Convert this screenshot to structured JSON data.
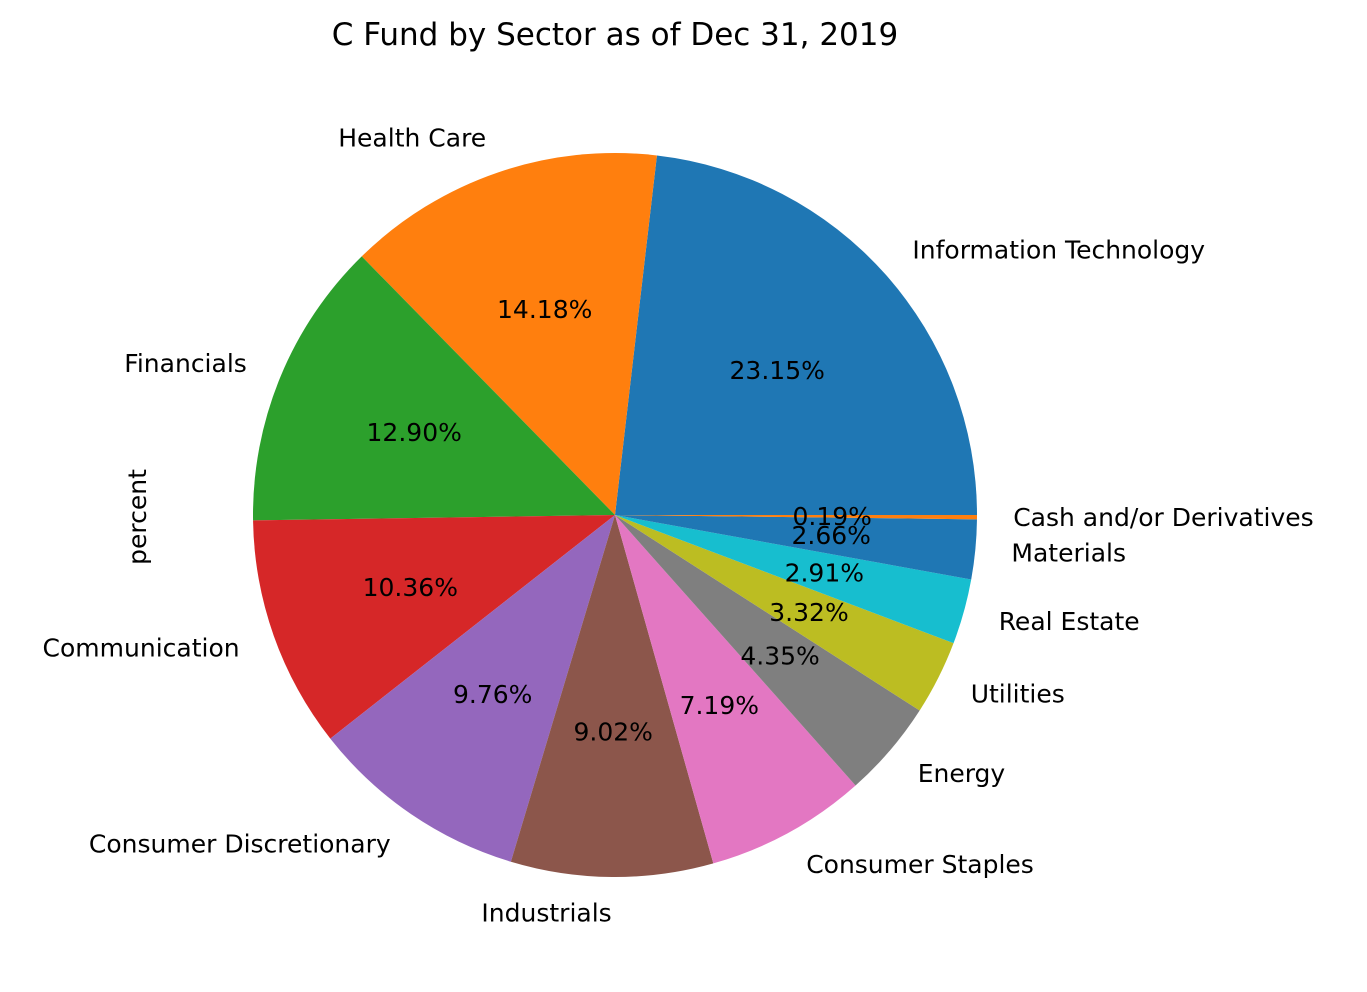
{
  "chart_data": {
    "type": "pie",
    "title": "C Fund by Sector as of Dec 31, 2019",
    "ylabel": "percent",
    "value_format": "{v}%",
    "start_angle_deg": 0,
    "direction": "counterclockwise",
    "slices": [
      {
        "label": "Information Technology",
        "value": 23.15,
        "display": "23.15%",
        "color": "#1f77b4"
      },
      {
        "label": "Health Care",
        "value": 14.18,
        "display": "14.18%",
        "color": "#ff7f0e"
      },
      {
        "label": "Financials",
        "value": 12.9,
        "display": "12.90%",
        "color": "#2ca02c"
      },
      {
        "label": "Communication",
        "value": 10.36,
        "display": "10.36%",
        "color": "#d62728"
      },
      {
        "label": "Consumer Discretionary",
        "value": 9.76,
        "display": "9.76%",
        "color": "#9467bd"
      },
      {
        "label": "Industrials",
        "value": 9.02,
        "display": "9.02%",
        "color": "#8c564b"
      },
      {
        "label": "Consumer Staples",
        "value": 7.19,
        "display": "7.19%",
        "color": "#e377c2"
      },
      {
        "label": "Energy",
        "value": 4.35,
        "display": "4.35%",
        "color": "#7f7f7f"
      },
      {
        "label": "Utilities",
        "value": 3.32,
        "display": "3.32%",
        "color": "#bcbd22"
      },
      {
        "label": "Real Estate",
        "value": 2.91,
        "display": "2.91%",
        "color": "#17becf"
      },
      {
        "label": "Materials",
        "value": 2.66,
        "display": "2.66%",
        "color": "#1f77b4"
      },
      {
        "label": "Cash and/or Derivatives",
        "value": 0.19,
        "display": "0.19%",
        "color": "#ff7f0e"
      }
    ]
  }
}
